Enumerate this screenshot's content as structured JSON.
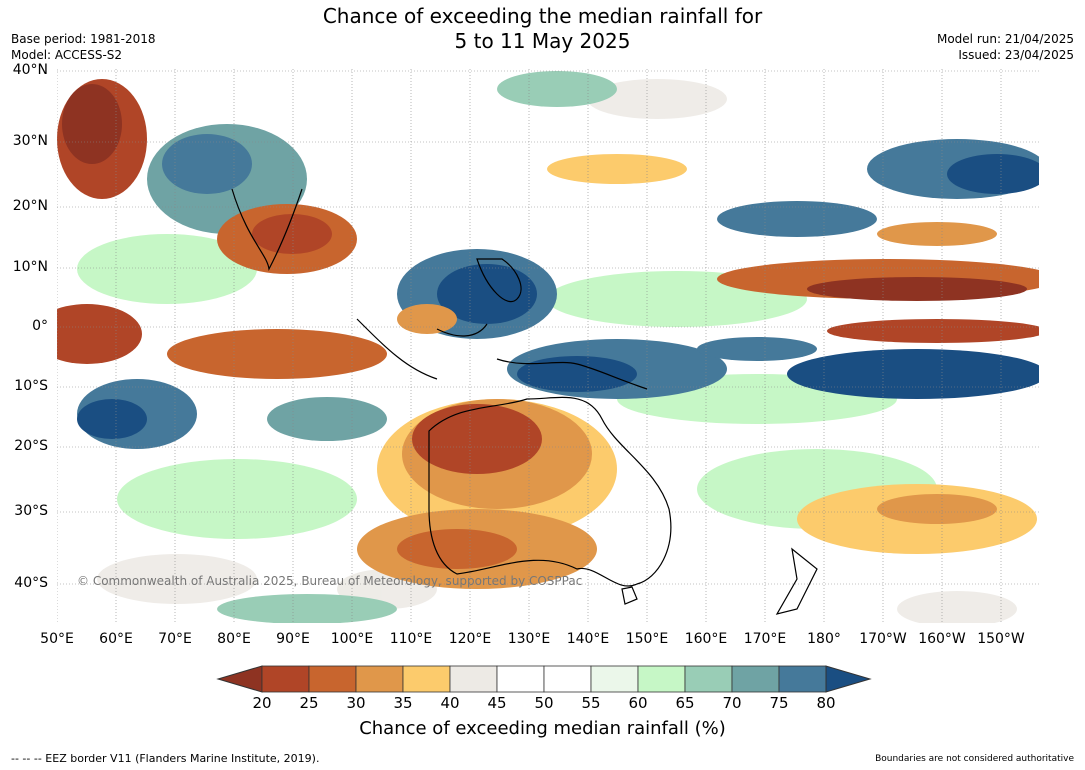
{
  "title_line1": "Chance of exceeding the median rainfall for",
  "title_line2": "5 to 11 May 2025",
  "base_period": "Base period: 1981-2018",
  "model": "Model: ACCESS-S2",
  "model_run": "Model run: 21/04/2025",
  "issued": "Issued: 23/04/2025",
  "lat_labels": [
    "40°N",
    "30°N",
    "20°N",
    "10°N",
    "0°",
    "10°S",
    "20°S",
    "30°S",
    "40°S"
  ],
  "lon_labels": [
    "50°E",
    "60°E",
    "70°E",
    "80°E",
    "90°E",
    "100°E",
    "110°E",
    "120°E",
    "130°E",
    "140°E",
    "150°E",
    "160°E",
    "170°E",
    "180°",
    "170°W",
    "160°W",
    "150°W"
  ],
  "copyright": "© Commonwealth of Australia 2025, Bureau of Meteorology, supported by COSPPac",
  "colorbar": {
    "ticks": [
      "20",
      "25",
      "30",
      "35",
      "40",
      "45",
      "50",
      "55",
      "60",
      "65",
      "70",
      "75",
      "80"
    ],
    "colors": [
      "#8e3322",
      "#b04527",
      "#c8652e",
      "#e0974a",
      "#fccb6c",
      "#edeae5",
      "#ffffff",
      "#ffffff",
      "#ebf7ea",
      "#c6f7c6",
      "#99cdb6",
      "#6fa3a4",
      "#45799a",
      "#1a4e82"
    ],
    "label": "Chance of exceeding median rainfall (%)"
  },
  "eez_note": "--  --  -- EEZ border V11 (Flanders Marine Institute, 2019).",
  "disclaimer": "Boundaries are not considered authoritative"
}
